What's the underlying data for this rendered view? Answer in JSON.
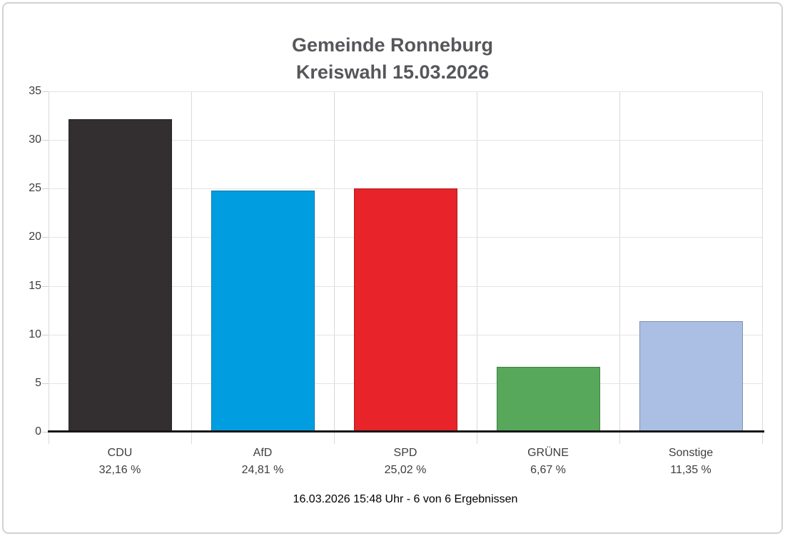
{
  "title": {
    "line1": "Gemeinde Ronneburg",
    "line2": "Kreiswahl 15.03.2026"
  },
  "footer": {
    "text": "16.03.2026 15:48 Uhr - 6 von 6 Ergebnissen"
  },
  "chart_data": {
    "type": "bar",
    "title": "Gemeinde Ronneburg Kreiswahl 15.03.2026",
    "categories": [
      "CDU",
      "AfD",
      "SPD",
      "GRÜNE",
      "Sonstige"
    ],
    "values": [
      32.16,
      24.81,
      25.02,
      6.67,
      11.35
    ],
    "value_labels": [
      "32,16 %",
      "24,81 %",
      "25,02 %",
      "6,67 %",
      "11,35 %"
    ],
    "bar_colors": [
      "#332f30",
      "#009ee0",
      "#e8232a",
      "#57a85b",
      "#abbfe4"
    ],
    "xlabel": "",
    "ylabel": "",
    "ylim": [
      0,
      35
    ],
    "yticks": [
      0,
      5,
      10,
      15,
      20,
      25,
      30,
      35
    ],
    "grid": true,
    "legend": false,
    "gridline_color": "#e4e4e4",
    "axis_color": "#161616"
  }
}
